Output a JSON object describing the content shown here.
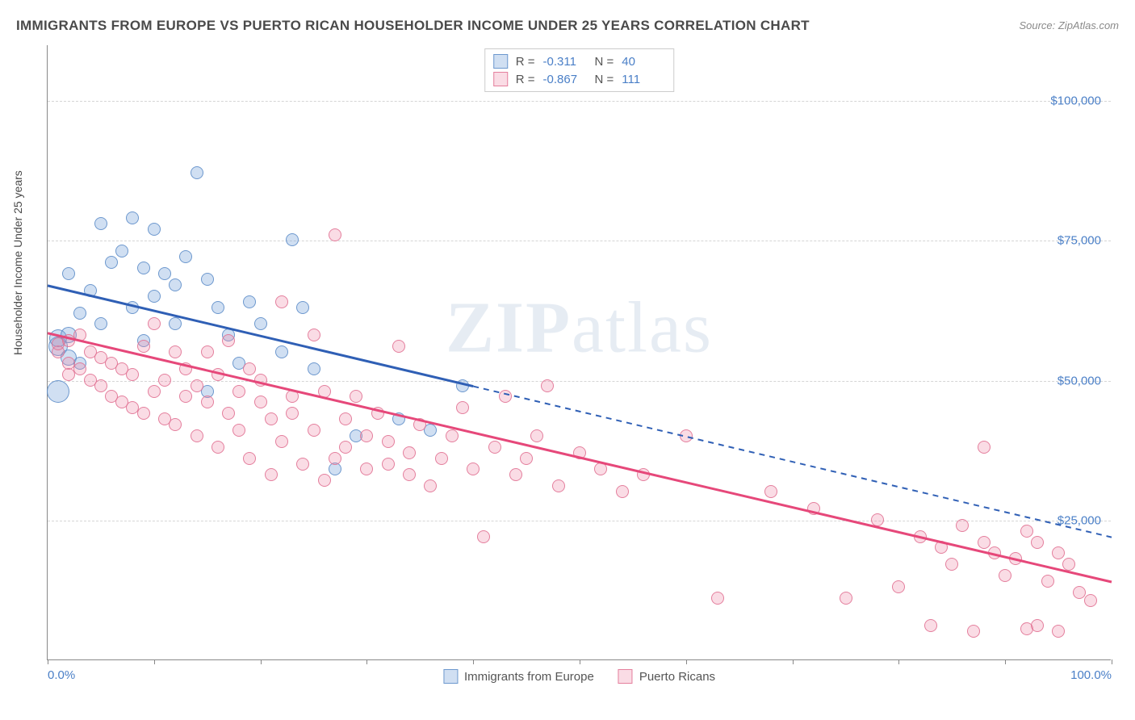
{
  "title": "IMMIGRANTS FROM EUROPE VS PUERTO RICAN HOUSEHOLDER INCOME UNDER 25 YEARS CORRELATION CHART",
  "source": "Source: ZipAtlas.com",
  "ylabel": "Householder Income Under 25 years",
  "watermark_bold": "ZIP",
  "watermark_rest": "atlas",
  "chart": {
    "type": "scatter",
    "xlim": [
      0,
      100
    ],
    "ylim": [
      0,
      110000
    ],
    "x_unit": "%",
    "y_unit": "$",
    "background_color": "#ffffff",
    "grid_color": "#d5d5d5",
    "axis_color": "#888888",
    "label_color": "#4a7fc7",
    "yticks": [
      {
        "v": 25000,
        "label": "$25,000"
      },
      {
        "v": 50000,
        "label": "$50,000"
      },
      {
        "v": 75000,
        "label": "$75,000"
      },
      {
        "v": 100000,
        "label": "$100,000"
      }
    ],
    "xtick_positions": [
      0,
      10,
      20,
      30,
      40,
      50,
      60,
      70,
      80,
      90,
      100
    ],
    "xtick_labels": [
      {
        "pos": 0,
        "label": "0.0%"
      },
      {
        "pos": 100,
        "label": "100.0%"
      }
    ],
    "series": [
      {
        "name": "Immigrants from Europe",
        "R": "-0.311",
        "N": "40",
        "fill_color": "rgba(120,164,217,0.35)",
        "stroke_color": "rgba(92,140,200,0.85)",
        "line_color": "#2f5fb5",
        "marker_radius": 8,
        "trend": {
          "x1": 0,
          "y1": 67000,
          "x2": 100,
          "y2": 22000,
          "solid_until_x": 40
        },
        "points": [
          [
            1,
            48000,
            14
          ],
          [
            1,
            56000,
            12
          ],
          [
            1,
            57500,
            11
          ],
          [
            2,
            54000,
            10
          ],
          [
            2,
            58000,
            10
          ],
          [
            2,
            69000
          ],
          [
            3,
            62000
          ],
          [
            3,
            53000
          ],
          [
            4,
            66000
          ],
          [
            5,
            78000
          ],
          [
            5,
            60000
          ],
          [
            6,
            71000
          ],
          [
            7,
            73000
          ],
          [
            8,
            79000
          ],
          [
            8,
            63000
          ],
          [
            9,
            70000
          ],
          [
            9,
            57000
          ],
          [
            10,
            77000
          ],
          [
            10,
            65000
          ],
          [
            11,
            69000
          ],
          [
            12,
            60000
          ],
          [
            12,
            67000
          ],
          [
            13,
            72000
          ],
          [
            14,
            87000
          ],
          [
            15,
            68000
          ],
          [
            15,
            48000
          ],
          [
            16,
            63000
          ],
          [
            17,
            58000
          ],
          [
            18,
            53000
          ],
          [
            19,
            64000
          ],
          [
            20,
            60000
          ],
          [
            22,
            55000
          ],
          [
            23,
            75000
          ],
          [
            24,
            63000
          ],
          [
            25,
            52000
          ],
          [
            27,
            34000
          ],
          [
            29,
            40000
          ],
          [
            33,
            43000
          ],
          [
            36,
            41000
          ],
          [
            39,
            49000
          ]
        ]
      },
      {
        "name": "Puerto Ricans",
        "R": "-0.867",
        "N": "111",
        "fill_color": "rgba(238,140,170,0.30)",
        "stroke_color": "rgba(225,110,145,0.85)",
        "line_color": "#e6487a",
        "marker_radius": 8,
        "trend": {
          "x1": 0,
          "y1": 58500,
          "x2": 100,
          "y2": 14000,
          "solid_until_x": 100
        },
        "points": [
          [
            1,
            55000
          ],
          [
            1,
            56500
          ],
          [
            2,
            53000
          ],
          [
            2,
            57000
          ],
          [
            2,
            51000
          ],
          [
            3,
            58000
          ],
          [
            3,
            52000
          ],
          [
            4,
            50000
          ],
          [
            4,
            55000
          ],
          [
            5,
            54000
          ],
          [
            5,
            49000
          ],
          [
            6,
            47000
          ],
          [
            6,
            53000
          ],
          [
            7,
            46000
          ],
          [
            7,
            52000
          ],
          [
            8,
            51000
          ],
          [
            8,
            45000
          ],
          [
            9,
            56000
          ],
          [
            9,
            44000
          ],
          [
            10,
            60000
          ],
          [
            10,
            48000
          ],
          [
            11,
            50000
          ],
          [
            11,
            43000
          ],
          [
            12,
            55000
          ],
          [
            12,
            42000
          ],
          [
            13,
            47000
          ],
          [
            13,
            52000
          ],
          [
            14,
            49000
          ],
          [
            14,
            40000
          ],
          [
            15,
            55000
          ],
          [
            15,
            46000
          ],
          [
            16,
            51000
          ],
          [
            16,
            38000
          ],
          [
            17,
            44000
          ],
          [
            17,
            57000
          ],
          [
            18,
            48000
          ],
          [
            18,
            41000
          ],
          [
            19,
            52000
          ],
          [
            19,
            36000
          ],
          [
            20,
            46000
          ],
          [
            20,
            50000
          ],
          [
            21,
            43000
          ],
          [
            21,
            33000
          ],
          [
            22,
            64000
          ],
          [
            22,
            39000
          ],
          [
            23,
            47000
          ],
          [
            23,
            44000
          ],
          [
            24,
            35000
          ],
          [
            25,
            58000
          ],
          [
            25,
            41000
          ],
          [
            26,
            48000
          ],
          [
            26,
            32000
          ],
          [
            27,
            76000
          ],
          [
            27,
            36000
          ],
          [
            28,
            43000
          ],
          [
            28,
            38000
          ],
          [
            29,
            47000
          ],
          [
            30,
            34000
          ],
          [
            30,
            40000
          ],
          [
            31,
            44000
          ],
          [
            32,
            39000
          ],
          [
            32,
            35000
          ],
          [
            33,
            56000
          ],
          [
            34,
            37000
          ],
          [
            34,
            33000
          ],
          [
            35,
            42000
          ],
          [
            36,
            31000
          ],
          [
            37,
            36000
          ],
          [
            38,
            40000
          ],
          [
            39,
            45000
          ],
          [
            40,
            34000
          ],
          [
            41,
            22000
          ],
          [
            42,
            38000
          ],
          [
            43,
            47000
          ],
          [
            44,
            33000
          ],
          [
            45,
            36000
          ],
          [
            46,
            40000
          ],
          [
            47,
            49000
          ],
          [
            48,
            31000
          ],
          [
            50,
            37000
          ],
          [
            52,
            34000
          ],
          [
            54,
            30000
          ],
          [
            56,
            33000
          ],
          [
            60,
            40000
          ],
          [
            63,
            11000
          ],
          [
            68,
            30000
          ],
          [
            72,
            27000
          ],
          [
            75,
            11000
          ],
          [
            78,
            25000
          ],
          [
            80,
            13000
          ],
          [
            82,
            22000
          ],
          [
            83,
            6000
          ],
          [
            84,
            20000
          ],
          [
            85,
            17000
          ],
          [
            86,
            24000
          ],
          [
            87,
            5000
          ],
          [
            88,
            21000
          ],
          [
            88,
            38000
          ],
          [
            89,
            19000
          ],
          [
            90,
            15000
          ],
          [
            91,
            18000
          ],
          [
            92,
            23000
          ],
          [
            92,
            5500
          ],
          [
            93,
            6000
          ],
          [
            93,
            21000
          ],
          [
            94,
            14000
          ],
          [
            95,
            19000
          ],
          [
            95,
            5000
          ],
          [
            96,
            17000
          ],
          [
            97,
            12000
          ],
          [
            98,
            10500
          ]
        ]
      }
    ]
  }
}
